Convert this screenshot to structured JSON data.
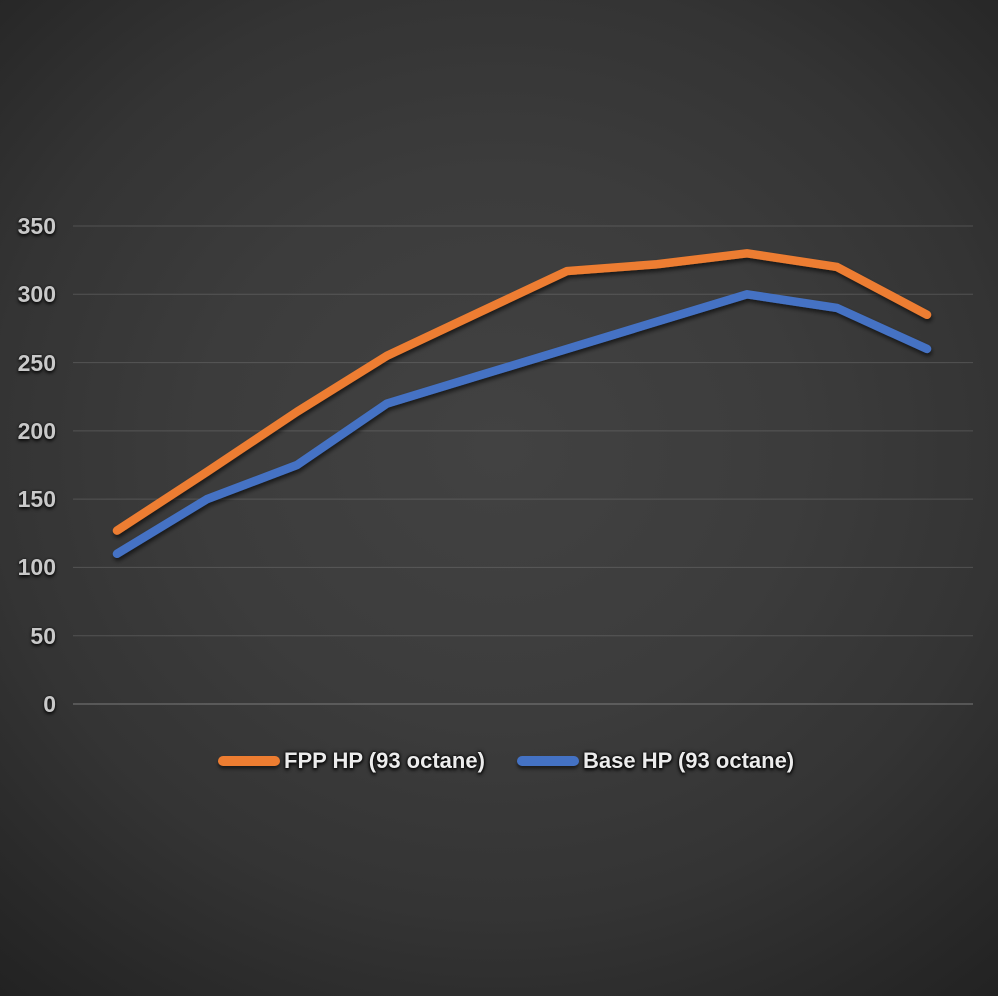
{
  "chart_data": {
    "type": "line",
    "title": "",
    "xlabel": "",
    "ylabel": "",
    "x": [
      1,
      2,
      3,
      4,
      5,
      6,
      7,
      8,
      9,
      10
    ],
    "x_axis_labels_visible": false,
    "series": [
      {
        "name": "FPP HP (93 octane)",
        "color": "#ED7D31",
        "values": [
          127,
          170,
          214,
          255,
          286,
          317,
          322,
          330,
          320,
          285
        ]
      },
      {
        "name": "Base HP (93 octane)",
        "color": "#4472C4",
        "values": [
          110,
          150,
          175,
          220,
          240,
          260,
          280,
          300,
          290,
          260
        ]
      }
    ],
    "ylim": [
      0,
      350
    ],
    "yticks": [
      0,
      50,
      100,
      150,
      200,
      250,
      300,
      350
    ],
    "grid": "horizontal",
    "legend_position": "bottom"
  },
  "colors": {
    "background_center": "#3e3e3e",
    "background_edge": "#232323",
    "gridline": "#8a8a8a",
    "axis_label": "#c9c9c9",
    "legend_text": "#ececec"
  }
}
